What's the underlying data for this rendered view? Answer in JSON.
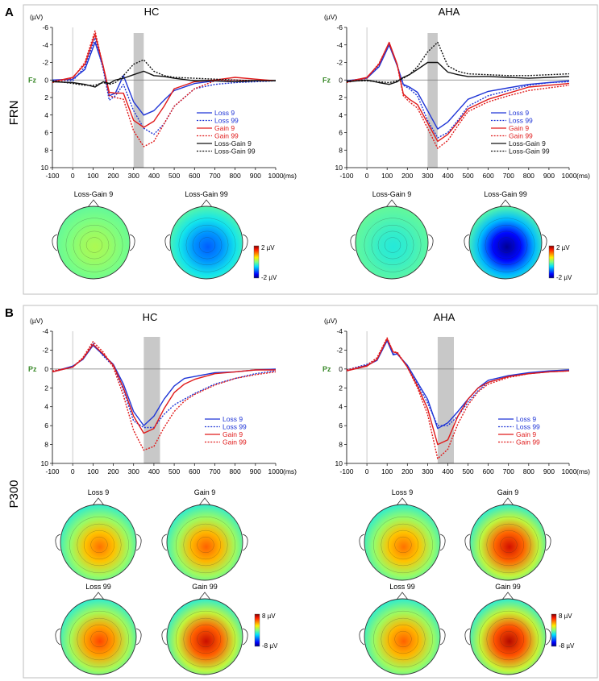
{
  "panels": [
    {
      "letter": "A",
      "row_label": "FRN",
      "electrode": "Fz",
      "y_ticks": [
        "-6",
        "-4",
        "-2",
        "0",
        "2",
        "4",
        "6",
        "8",
        "10"
      ],
      "ylim": [
        -6,
        10
      ],
      "shade_ms": [
        300,
        350
      ],
      "groups": [
        {
          "title": "HC",
          "legend": [
            "Loss 9",
            "Loss 99",
            "Gain 9",
            "Gain 99",
            "Loss-Gain 9",
            "Loss-Gain 99"
          ],
          "topo_titles": [
            "Loss-Gain 9",
            "Loss-Gain 99"
          ],
          "topo_levels": [
            0.55,
            0.22
          ]
        },
        {
          "title": "AHA",
          "legend": [
            "Loss 9",
            "Loss 99",
            "Gain 9",
            "Gain 99",
            "Loss-Gain 9",
            "Loss-Gain 99"
          ],
          "topo_titles": [
            "Loss-Gain 9",
            "Loss-Gain 99"
          ],
          "topo_levels": [
            0.4,
            0.02
          ]
        }
      ],
      "colorbar": {
        "top": "2 µV",
        "bottom": "-2 µV"
      }
    },
    {
      "letter": "B",
      "row_label": "P300",
      "electrode": "Pz",
      "y_ticks": [
        "-4",
        "-2",
        "0",
        "2",
        "4",
        "6",
        "8",
        "10"
      ],
      "ylim": [
        -4,
        10
      ],
      "shade_ms": [
        350,
        430
      ],
      "groups": [
        {
          "title": "HC",
          "legend": [
            "Loss 9",
            "Loss 99",
            "Gain 9",
            "Gain 99"
          ],
          "topo_titles": [
            "Loss 9",
            "Gain  9",
            "Loss 99",
            "Gain  99"
          ],
          "topo_levels": [
            0.78,
            0.8,
            0.83,
            0.93
          ]
        },
        {
          "title": "AHA",
          "legend": [
            "Loss 9",
            "Loss 99",
            "Gain 9",
            "Gain 99"
          ],
          "topo_titles": [
            "Loss 9",
            "Gain  9",
            "Loss 99",
            "Gain  99"
          ],
          "topo_levels": [
            0.78,
            0.92,
            0.8,
            0.95
          ]
        }
      ],
      "colorbar": {
        "top": "8 µV",
        "bottom": "-8 µV"
      }
    }
  ],
  "x_ticks": [
    "-100",
    "0",
    "100",
    "200",
    "300",
    "400",
    "500",
    "600",
    "700",
    "800",
    "900",
    "1000"
  ],
  "x_unit": "(ms)",
  "y_unit": "(µV)",
  "colors": {
    "loss": "#1f35d6",
    "gain": "#e01a1a",
    "diff": "#111111",
    "shade": "#c8c8c8",
    "electrode": "#3a8a2a"
  },
  "chart_data": [
    {
      "type": "line",
      "title": "FRN HC (Fz)",
      "xlabel": "ms",
      "ylabel": "µV",
      "xlim": [
        -100,
        1000
      ],
      "ylim": [
        -6,
        10
      ],
      "x": [
        -100,
        0,
        60,
        110,
        150,
        180,
        210,
        250,
        300,
        350,
        400,
        450,
        500,
        600,
        700,
        800,
        900,
        1000
      ],
      "series": [
        {
          "name": "Loss 9",
          "style": "solid",
          "color": "blue",
          "values": [
            0,
            -0.1,
            -1.2,
            -4.3,
            -1.5,
            1.8,
            1.5,
            -0.5,
            2.5,
            4.0,
            3.5,
            2.3,
            1.2,
            0.4,
            0.1,
            0.2,
            0.1,
            0.1
          ]
        },
        {
          "name": "Loss 99",
          "style": "dotted",
          "color": "blue",
          "values": [
            0,
            0.1,
            -1.5,
            -4.8,
            -1.2,
            2.3,
            1.8,
            0.5,
            3.5,
            5.5,
            6.2,
            5.0,
            3.0,
            1.0,
            0.5,
            0.3,
            0.2,
            0.1
          ]
        },
        {
          "name": "Gain 9",
          "style": "solid",
          "color": "red",
          "values": [
            0.2,
            -0.3,
            -1.8,
            -5.2,
            -1.6,
            1.4,
            1.5,
            1.5,
            4.6,
            5.4,
            4.7,
            3.0,
            1.0,
            0.2,
            0.0,
            -0.3,
            -0.1,
            0.1
          ]
        },
        {
          "name": "Gain 99",
          "style": "dotted",
          "color": "red",
          "values": [
            0.3,
            -0.2,
            -2.0,
            -5.6,
            -1.5,
            1.8,
            2.0,
            2.2,
            5.8,
            7.6,
            7.0,
            5.0,
            3.0,
            1.0,
            0.1,
            0.0,
            0.1,
            0.1
          ]
        },
        {
          "name": "Loss-Gain 9",
          "style": "solid",
          "color": "black",
          "values": [
            0.2,
            0.3,
            0.5,
            0.8,
            0.2,
            0.4,
            0.0,
            -0.2,
            -0.6,
            -1.0,
            -0.5,
            -0.4,
            -0.2,
            0.1,
            0.1,
            0.2,
            0.1,
            0.1
          ]
        },
        {
          "name": "Loss-Gain 99",
          "style": "dotted",
          "color": "black",
          "values": [
            0.1,
            0.4,
            0.6,
            0.6,
            0.3,
            0.5,
            0.3,
            -0.5,
            -1.8,
            -2.3,
            -1.0,
            -0.5,
            -0.3,
            -0.2,
            -0.1,
            0.0,
            0.1,
            0.1
          ]
        }
      ]
    },
    {
      "type": "line",
      "title": "FRN AHA (Fz)",
      "xlabel": "ms",
      "ylabel": "µV",
      "xlim": [
        -100,
        1000
      ],
      "ylim": [
        -6,
        10
      ],
      "x": [
        -100,
        0,
        60,
        110,
        150,
        180,
        210,
        250,
        300,
        350,
        400,
        450,
        500,
        600,
        700,
        800,
        900,
        1000
      ],
      "series": [
        {
          "name": "Loss 9",
          "style": "solid",
          "color": "blue",
          "values": [
            0.1,
            -0.2,
            -1.5,
            -4.0,
            -1.6,
            0.5,
            0.8,
            1.4,
            3.5,
            5.6,
            4.8,
            3.5,
            2.2,
            1.3,
            0.9,
            0.5,
            0.3,
            0.1
          ]
        },
        {
          "name": "Loss 99",
          "style": "dotted",
          "color": "blue",
          "values": [
            0.1,
            -0.2,
            -1.6,
            -4.2,
            -1.7,
            0.6,
            1.0,
            1.8,
            4.6,
            6.6,
            6.0,
            4.6,
            3.0,
            1.8,
            1.2,
            0.6,
            0.3,
            0.2
          ]
        },
        {
          "name": "Gain 9",
          "style": "solid",
          "color": "red",
          "values": [
            0.2,
            -0.3,
            -1.8,
            -4.3,
            -1.8,
            1.6,
            2.2,
            2.8,
            4.9,
            7.0,
            6.2,
            4.8,
            3.3,
            2.2,
            1.5,
            0.8,
            0.6,
            0.4
          ]
        },
        {
          "name": "Gain 99",
          "style": "dotted",
          "color": "red",
          "values": [
            0.3,
            -0.2,
            -1.9,
            -4.2,
            -1.7,
            1.8,
            2.5,
            3.2,
            5.5,
            7.8,
            6.9,
            5.2,
            3.6,
            2.5,
            1.8,
            1.2,
            0.9,
            0.6
          ]
        },
        {
          "name": "Loss-Gain 9",
          "style": "solid",
          "color": "black",
          "values": [
            0.2,
            0.0,
            0.3,
            0.5,
            0.2,
            -0.3,
            -0.6,
            -1.2,
            -2.0,
            -2.0,
            -0.9,
            -0.6,
            -0.4,
            -0.4,
            -0.3,
            -0.2,
            -0.3,
            -0.4
          ]
        },
        {
          "name": "Loss-Gain 99",
          "style": "dotted",
          "color": "black",
          "values": [
            0.1,
            0.1,
            0.2,
            0.3,
            0.1,
            -0.2,
            -0.6,
            -1.5,
            -3.2,
            -4.3,
            -1.6,
            -1.0,
            -0.7,
            -0.6,
            -0.5,
            -0.5,
            -0.6,
            -0.7
          ]
        }
      ]
    },
    {
      "type": "line",
      "title": "P300 HC (Pz)",
      "xlabel": "ms",
      "ylabel": "µV",
      "xlim": [
        -100,
        1000
      ],
      "ylim": [
        -4,
        10
      ],
      "x": [
        -100,
        0,
        50,
        100,
        150,
        200,
        250,
        300,
        350,
        400,
        450,
        500,
        550,
        600,
        700,
        800,
        900,
        1000
      ],
      "series": [
        {
          "name": "Loss 9",
          "style": "solid",
          "color": "blue",
          "values": [
            0.3,
            -0.3,
            -1.0,
            -2.5,
            -1.5,
            -0.5,
            1.6,
            4.5,
            6.0,
            5.0,
            3.2,
            1.8,
            1.0,
            0.8,
            0.4,
            0.3,
            0.1,
            0.0
          ]
        },
        {
          "name": "Loss 99",
          "style": "dotted",
          "color": "blue",
          "values": [
            0.3,
            -0.2,
            -1.1,
            -2.7,
            -1.4,
            -0.3,
            2.2,
            5.5,
            6.2,
            6.2,
            4.8,
            3.8,
            3.2,
            2.6,
            1.6,
            1.0,
            0.5,
            0.2
          ]
        },
        {
          "name": "Gain 9",
          "style": "solid",
          "color": "red",
          "values": [
            0.3,
            -0.2,
            -1.1,
            -2.6,
            -1.6,
            -0.4,
            2.0,
            5.0,
            6.8,
            6.3,
            4.2,
            2.5,
            1.6,
            1.1,
            0.5,
            0.3,
            0.1,
            0.1
          ]
        },
        {
          "name": "Gain 99",
          "style": "dotted",
          "color": "red",
          "values": [
            0.2,
            -0.2,
            -1.2,
            -2.9,
            -1.8,
            -0.2,
            2.8,
            6.5,
            8.6,
            8.2,
            6.2,
            4.5,
            3.4,
            2.7,
            1.7,
            1.0,
            0.6,
            0.3
          ]
        }
      ]
    },
    {
      "type": "line",
      "title": "P300 AHA (Pz)",
      "xlabel": "ms",
      "ylabel": "µV",
      "xlim": [
        -100,
        1000
      ],
      "ylim": [
        -4,
        10
      ],
      "x": [
        -100,
        0,
        50,
        100,
        130,
        150,
        200,
        250,
        300,
        350,
        400,
        450,
        500,
        550,
        600,
        700,
        800,
        900,
        1000
      ],
      "series": [
        {
          "name": "Loss 9",
          "style": "solid",
          "color": "blue",
          "values": [
            0.2,
            -0.4,
            -0.9,
            -3.0,
            -1.5,
            -1.6,
            -0.4,
            1.4,
            3.2,
            6.3,
            5.7,
            4.5,
            3.2,
            2.0,
            1.2,
            0.7,
            0.4,
            0.2,
            0.1
          ]
        },
        {
          "name": "Loss 99",
          "style": "dotted",
          "color": "blue",
          "values": [
            0.1,
            -0.5,
            -1.0,
            -3.1,
            -1.6,
            -1.6,
            -0.3,
            1.6,
            3.6,
            6.0,
            6.0,
            5.0,
            3.5,
            2.3,
            1.4,
            0.8,
            0.5,
            0.3,
            0.2
          ]
        },
        {
          "name": "Gain 9",
          "style": "solid",
          "color": "red",
          "values": [
            0.2,
            -0.3,
            -1.0,
            -3.2,
            -1.8,
            -1.7,
            -0.2,
            1.8,
            4.2,
            8.0,
            7.5,
            5.0,
            3.2,
            2.0,
            1.4,
            0.8,
            0.5,
            0.3,
            0.2
          ]
        },
        {
          "name": "Gain 99",
          "style": "dotted",
          "color": "red",
          "values": [
            0.1,
            -0.4,
            -1.2,
            -3.3,
            -1.8,
            -1.8,
            -0.2,
            2.0,
            4.8,
            9.5,
            8.5,
            5.8,
            3.8,
            2.4,
            1.6,
            0.9,
            0.5,
            0.3,
            0.2
          ]
        }
      ]
    }
  ]
}
